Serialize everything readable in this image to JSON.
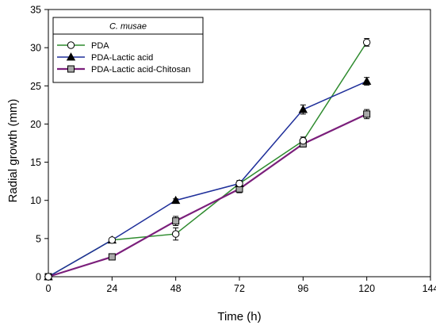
{
  "chart_data": {
    "type": "line",
    "title": "",
    "xlabel": "Time (h)",
    "ylabel": "Radial growth (mm)",
    "xlim": [
      0,
      144
    ],
    "ylim": [
      0,
      35
    ],
    "x_ticks": [
      0,
      24,
      48,
      72,
      96,
      120,
      144
    ],
    "y_ticks": [
      0,
      5,
      10,
      15,
      20,
      25,
      30,
      35
    ],
    "grid": false,
    "legend_title": "C. musae",
    "legend_position": "top-left",
    "x": [
      0,
      24,
      48,
      72,
      96,
      120
    ],
    "series": [
      {
        "name": "PDA",
        "marker": "open-circle",
        "color": "#2e8b2e",
        "values": [
          0,
          4.8,
          5.6,
          12.2,
          17.8,
          30.7
        ],
        "errors": [
          0,
          0.2,
          0.8,
          0.4,
          0.5,
          0.5
        ]
      },
      {
        "name": "PDA-Lactic acid",
        "marker": "filled-triangle",
        "color": "#1f2f9a",
        "values": [
          0,
          4.8,
          10.0,
          12.2,
          21.9,
          25.6
        ],
        "errors": [
          0,
          0.2,
          0.2,
          0.3,
          0.6,
          0.5
        ]
      },
      {
        "name": "PDA-Lactic acid-Chitosan",
        "marker": "gray-square",
        "color": "#7b1f7b",
        "values": [
          0,
          2.6,
          7.3,
          11.5,
          17.4,
          21.3
        ],
        "errors": [
          0,
          0.2,
          0.6,
          0.5,
          0.4,
          0.6
        ]
      }
    ]
  }
}
